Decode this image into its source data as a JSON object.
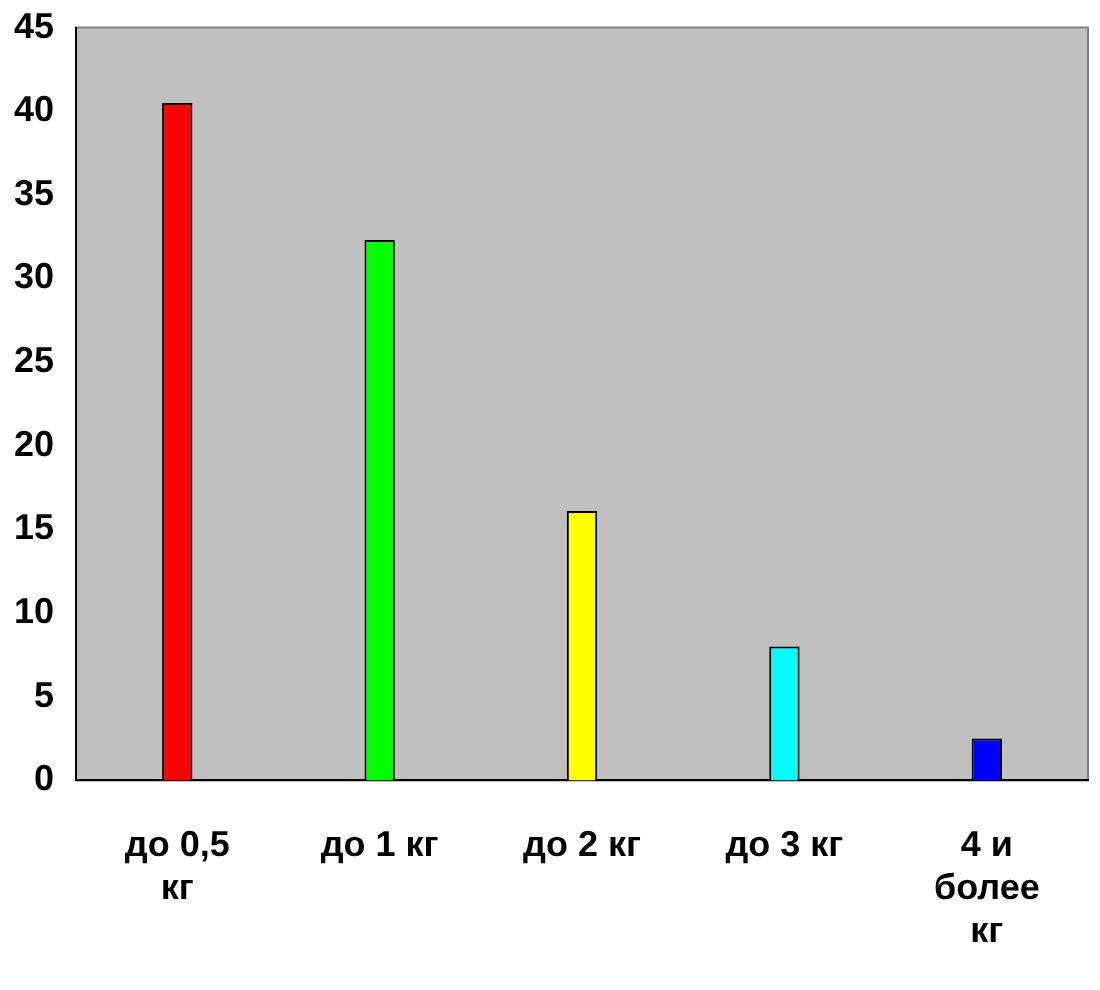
{
  "chart_data": {
    "type": "bar",
    "categories": [
      "до 0,5 кг",
      "до 1 кг",
      "до 2 кг",
      "до 3 кг",
      "4 и более кг"
    ],
    "values": [
      40.5,
      32.3,
      16.1,
      8,
      2.5
    ],
    "colors": [
      "#ff0000",
      "#00ff00",
      "#ffff00",
      "#00ffff",
      "#0000ff"
    ],
    "ylim": [
      0,
      45
    ],
    "yticks": [
      0,
      5,
      10,
      15,
      20,
      25,
      30,
      35,
      40,
      45
    ],
    "grid": false,
    "legend": false
  }
}
